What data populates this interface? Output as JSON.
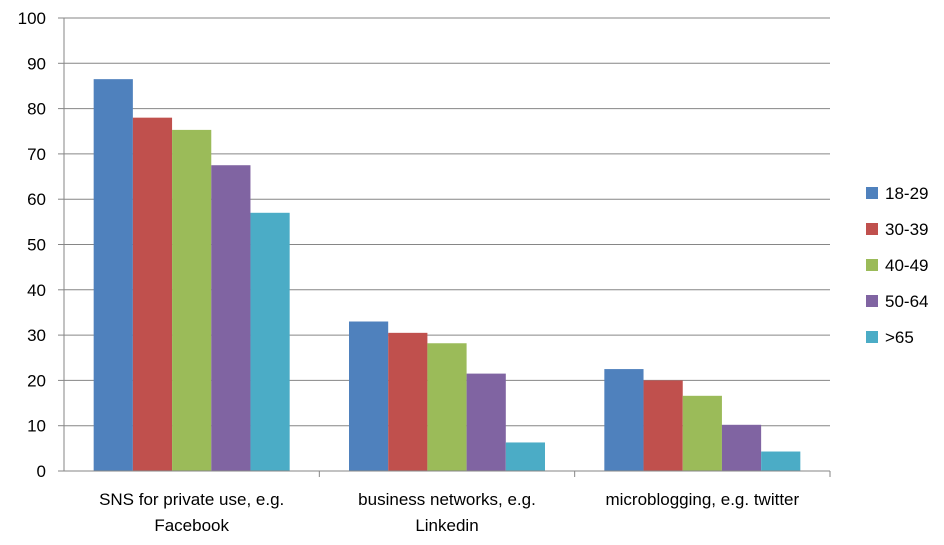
{
  "chart_data": {
    "type": "bar",
    "title": "",
    "xlabel": "",
    "ylabel": "",
    "ylim": [
      0,
      100
    ],
    "yticks": [
      0,
      10,
      20,
      30,
      40,
      50,
      60,
      70,
      80,
      90,
      100
    ],
    "grid": true,
    "legend_position": "right",
    "categories": [
      [
        "SNS for private use, e.g.",
        "Facebook"
      ],
      [
        "business networks, e.g.",
        "Linkedin"
      ],
      [
        "microblogging, e.g. twitter"
      ]
    ],
    "series": [
      {
        "name": "18-29",
        "color": "#4F81BD",
        "values": [
          86.5,
          33,
          22.5
        ]
      },
      {
        "name": "30-39",
        "color": "#C0504D",
        "values": [
          78,
          30.5,
          20
        ]
      },
      {
        "name": "40-49",
        "color": "#9BBB59",
        "values": [
          75.3,
          28.2,
          16.6
        ]
      },
      {
        "name": "50-64",
        "color": "#8064A2",
        "values": [
          67.5,
          21.5,
          10.2
        ]
      },
      {
        "name": ">65",
        "color": "#4BACC6",
        "values": [
          57,
          6.3,
          4.3
        ]
      }
    ]
  }
}
